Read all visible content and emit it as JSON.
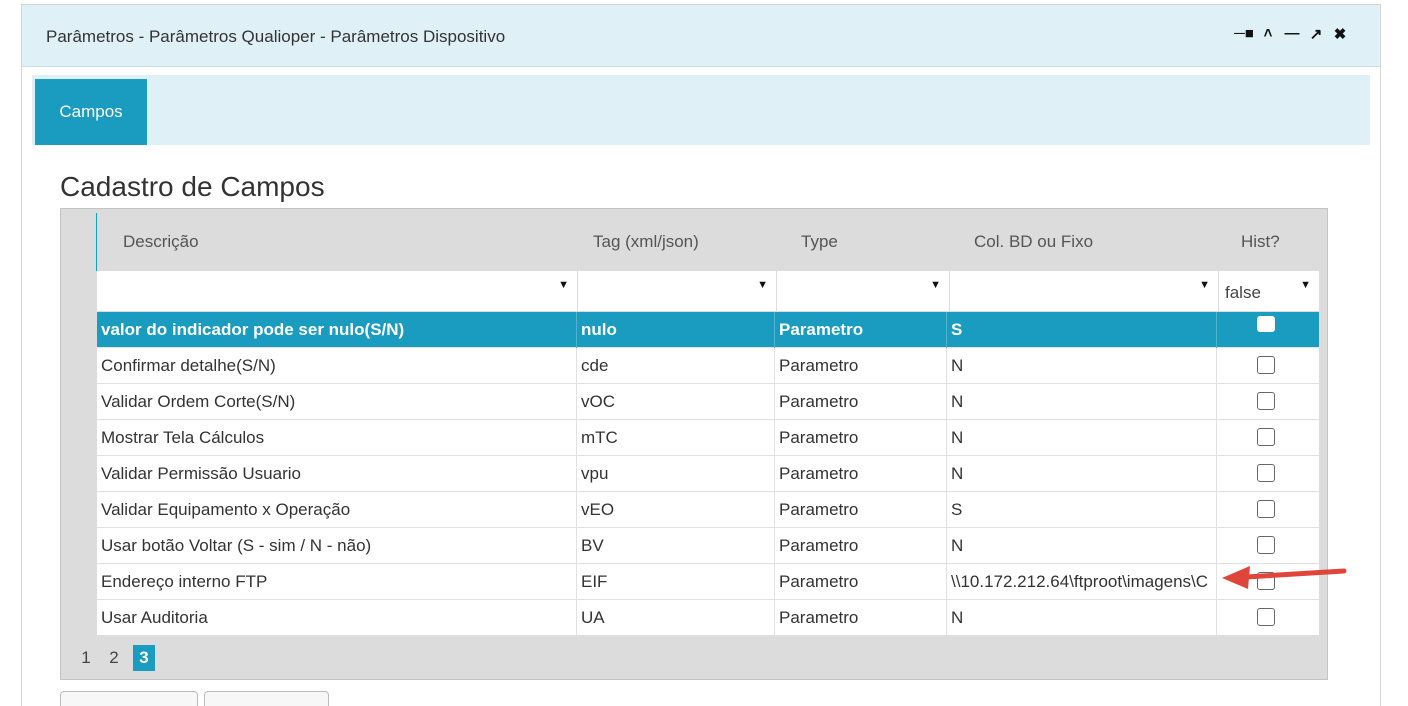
{
  "window": {
    "title": "Parâmetros - Parâmetros Qualioper - Parâmetros Dispositivo",
    "controls": [
      "pin-icon",
      "collapse-icon",
      "minimize-icon",
      "external-link-icon",
      "close-icon"
    ]
  },
  "tabs": [
    {
      "label": "Campos",
      "active": true
    }
  ],
  "section": {
    "title": "Cadastro de Campos"
  },
  "grid": {
    "columns": [
      "Descrição",
      "Tag (xml/json)",
      "Type",
      "Col. BD ou Fixo",
      "Hist?"
    ],
    "filters": {
      "hist": "false"
    },
    "rows": [
      {
        "descricao": "valor do indicador pode ser nulo(S/N)",
        "tag": "nulo",
        "type": "Parametro",
        "col": "S",
        "selected": true
      },
      {
        "descricao": "Confirmar detalhe(S/N)",
        "tag": "cde",
        "type": "Parametro",
        "col": "N"
      },
      {
        "descricao": "Validar Ordem Corte(S/N)",
        "tag": "vOC",
        "type": "Parametro",
        "col": "N"
      },
      {
        "descricao": "Mostrar Tela Cálculos",
        "tag": "mTC",
        "type": "Parametro",
        "col": "N"
      },
      {
        "descricao": "Validar Permissão Usuario",
        "tag": "vpu",
        "type": "Parametro",
        "col": "N"
      },
      {
        "descricao": "Validar Equipamento x Operação",
        "tag": "vEO",
        "type": "Parametro",
        "col": "S"
      },
      {
        "descricao": "Usar botão Voltar (S - sim / N - não)",
        "tag": "BV",
        "type": "Parametro",
        "col": "N"
      },
      {
        "descricao": "Endereço interno FTP",
        "tag": "EIF",
        "type": "Parametro",
        "col": "\\\\10.172.212.64\\ftproot\\imagens\\C"
      },
      {
        "descricao": "Usar Auditoria",
        "tag": "UA",
        "type": "Parametro",
        "col": "N"
      }
    ],
    "pages": [
      "1",
      "2",
      "3"
    ],
    "current_page": "3"
  },
  "colors": {
    "accent": "#1a9bc0",
    "header_bg": "#dff1f7",
    "arrow": "#e0453a"
  }
}
